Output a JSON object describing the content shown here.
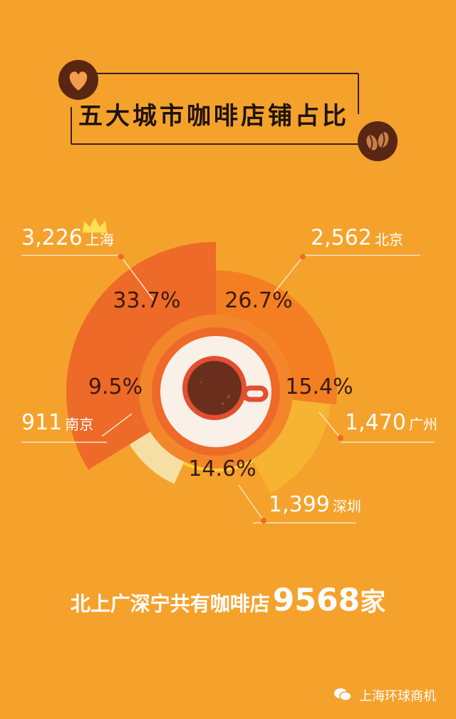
{
  "title": "五大城市咖啡店铺占比",
  "chart_data": {
    "type": "pie",
    "slices": [
      {
        "city": "上海",
        "count": "3,226",
        "value": 33.7,
        "label": "33.7%",
        "color": "#ee6a28"
      },
      {
        "city": "北京",
        "count": "2,562",
        "value": 26.7,
        "label": "26.7%",
        "color": "#f47f22"
      },
      {
        "city": "广州",
        "count": "1,470",
        "value": 15.4,
        "label": "15.4%",
        "color": "#f7b432"
      },
      {
        "city": "深圳",
        "count": "1,399",
        "value": 14.6,
        "label": "14.6%",
        "color": "#fbd22c"
      },
      {
        "city": "南京",
        "count": "911",
        "value": 9.5,
        "label": "9.5%",
        "color": "#f6dfa4"
      }
    ]
  },
  "summary": {
    "prefix": "北上广深宁共有咖啡店",
    "number": "9568",
    "suffix": "家"
  },
  "watermark": "上海环球商机",
  "colors": {
    "background": "#f5a22c",
    "dark_brown": "#5a2614",
    "line": "#3a2016",
    "leader": "#f9e3c0",
    "cup_red": "#e24f31",
    "coffee": "#6a2f1c"
  },
  "icons": {
    "heart_badge": "heart-icon",
    "bean_badge": "coffee-bean-icon",
    "crown": "crown-icon",
    "cup": "coffee-cup-icon",
    "wechat": "wechat-icon"
  }
}
